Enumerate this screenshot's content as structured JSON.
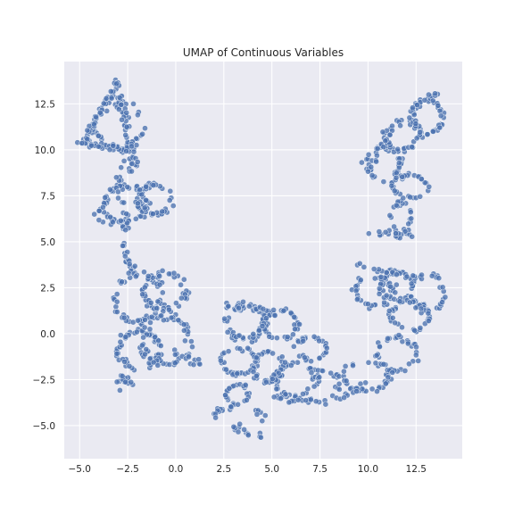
{
  "chart_data": {
    "type": "scatter",
    "title": "UMAP of Continuous Variables",
    "xlabel": "",
    "ylabel": "",
    "xlim": [
      -5.8,
      14.9
    ],
    "ylim": [
      -6.8,
      14.8
    ],
    "xticks": [
      -5.0,
      -2.5,
      0.0,
      2.5,
      5.0,
      7.5,
      10.0,
      12.5
    ],
    "xtick_labels": [
      "−5.0",
      "−2.5",
      "0.0",
      "2.5",
      "5.0",
      "7.5",
      "10.0",
      "12.5"
    ],
    "yticks": [
      -5.0,
      -2.5,
      0.0,
      2.5,
      5.0,
      7.5,
      10.0,
      12.5
    ],
    "ytick_labels": [
      "−5.0",
      "−2.5",
      "0.0",
      "2.5",
      "5.0",
      "7.5",
      "10.0",
      "12.5"
    ],
    "grid": true,
    "background": "#eaeaf2",
    "point_color": "#4c72b0",
    "point_edge_color": "#ffffff",
    "clusters": [
      {
        "kind": "ring",
        "cx": -2.9,
        "cy": 11.3,
        "rx": 1.3,
        "ry": 1.2,
        "n": 45
      },
      {
        "kind": "poly",
        "pts": [
          [
            -4.9,
            10.3
          ],
          [
            -3.0,
            13.7
          ],
          [
            -2.3,
            10.0
          ],
          [
            -4.9,
            10.3
          ]
        ],
        "n": 120
      },
      {
        "kind": "blob",
        "cx": -2.3,
        "cy": 9.3,
        "rx": 0.4,
        "ry": 0.8,
        "n": 20
      },
      {
        "kind": "ring",
        "cx": -2.6,
        "cy": 7.0,
        "rx": 1.1,
        "ry": 1.0,
        "n": 55
      },
      {
        "kind": "ring",
        "cx": -1.1,
        "cy": 7.3,
        "rx": 0.9,
        "ry": 0.8,
        "n": 45
      },
      {
        "kind": "poly",
        "pts": [
          [
            -4.3,
            6.2
          ],
          [
            -3.0,
            8.5
          ],
          [
            -2.6,
            5.8
          ],
          [
            -4.3,
            6.2
          ]
        ],
        "n": 40
      },
      {
        "kind": "line",
        "pts": [
          [
            -2.7,
            5.0
          ],
          [
            -2.7,
            4.2
          ],
          [
            -2.3,
            3.6
          ]
        ],
        "n": 14
      },
      {
        "kind": "ring",
        "cx": -2.0,
        "cy": 2.0,
        "rx": 1.2,
        "ry": 1.3,
        "n": 60
      },
      {
        "kind": "ring",
        "cx": -0.6,
        "cy": 2.3,
        "rx": 1.1,
        "ry": 1.0,
        "n": 55
      },
      {
        "kind": "ring",
        "cx": -1.9,
        "cy": -0.9,
        "rx": 1.1,
        "ry": 1.0,
        "n": 60
      },
      {
        "kind": "ring",
        "cx": -0.5,
        "cy": -0.4,
        "rx": 1.2,
        "ry": 1.3,
        "n": 60
      },
      {
        "kind": "blob",
        "cx": -2.6,
        "cy": -2.6,
        "rx": 0.4,
        "ry": 0.4,
        "n": 18
      },
      {
        "kind": "line",
        "pts": [
          [
            0.0,
            -1.0
          ],
          [
            1.0,
            -1.5
          ],
          [
            1.5,
            -1.6
          ]
        ],
        "n": 12
      },
      {
        "kind": "ring",
        "cx": 3.6,
        "cy": 0.6,
        "rx": 1.0,
        "ry": 0.9,
        "n": 50
      },
      {
        "kind": "ring",
        "cx": 5.4,
        "cy": 0.5,
        "rx": 0.9,
        "ry": 0.8,
        "n": 40
      },
      {
        "kind": "line",
        "pts": [
          [
            2.5,
            1.5
          ],
          [
            3.5,
            1.5
          ],
          [
            4.5,
            1.3
          ],
          [
            5.4,
            1.1
          ]
        ],
        "n": 25
      },
      {
        "kind": "ring",
        "cx": 3.3,
        "cy": -1.5,
        "rx": 0.9,
        "ry": 0.7,
        "n": 35
      },
      {
        "kind": "ring",
        "cx": 4.8,
        "cy": -1.8,
        "rx": 0.8,
        "ry": 0.8,
        "n": 35
      },
      {
        "kind": "ring",
        "cx": 6.2,
        "cy": -2.5,
        "rx": 1.1,
        "ry": 0.9,
        "n": 50
      },
      {
        "kind": "ring",
        "cx": 7.1,
        "cy": -0.8,
        "rx": 0.8,
        "ry": 0.6,
        "n": 30
      },
      {
        "kind": "line",
        "pts": [
          [
            5.0,
            -3.4
          ],
          [
            6.0,
            -3.7
          ],
          [
            7.0,
            -3.6
          ],
          [
            7.9,
            -3.8
          ]
        ],
        "n": 20
      },
      {
        "kind": "line",
        "pts": [
          [
            7.5,
            -2.0
          ],
          [
            8.3,
            -2.2
          ],
          [
            8.6,
            -2.6
          ],
          [
            8.2,
            -3.5
          ]
        ],
        "n": 16
      },
      {
        "kind": "ring",
        "cx": 3.2,
        "cy": -3.3,
        "rx": 0.6,
        "ry": 0.5,
        "n": 22
      },
      {
        "kind": "line",
        "pts": [
          [
            1.8,
            -4.4
          ],
          [
            2.5,
            -4.1
          ],
          [
            3.3,
            -3.9
          ],
          [
            4.2,
            -4.2
          ],
          [
            4.4,
            -4.6
          ]
        ],
        "n": 22
      },
      {
        "kind": "line",
        "pts": [
          [
            2.9,
            -5.1
          ],
          [
            3.6,
            -5.3
          ],
          [
            4.2,
            -5.5
          ],
          [
            4.8,
            -5.7
          ]
        ],
        "n": 14
      },
      {
        "kind": "ring",
        "cx": 9.9,
        "cy": -2.3,
        "rx": 1.2,
        "ry": 0.8,
        "n": 40
      },
      {
        "kind": "ring",
        "cx": 11.5,
        "cy": -1.1,
        "rx": 1.0,
        "ry": 0.9,
        "n": 40
      },
      {
        "kind": "line",
        "pts": [
          [
            8.6,
            -3.5
          ],
          [
            9.3,
            -3.1
          ],
          [
            10.0,
            -2.7
          ]
        ],
        "n": 12
      },
      {
        "kind": "ring",
        "cx": 10.3,
        "cy": 2.3,
        "rx": 1.0,
        "ry": 0.8,
        "n": 40
      },
      {
        "kind": "ring",
        "cx": 11.5,
        "cy": 2.6,
        "rx": 0.9,
        "ry": 0.8,
        "n": 35
      },
      {
        "kind": "ring",
        "cx": 12.2,
        "cy": 1.0,
        "rx": 1.0,
        "ry": 0.8,
        "n": 35
      },
      {
        "kind": "ring",
        "cx": 13.1,
        "cy": 2.2,
        "rx": 0.9,
        "ry": 1.0,
        "n": 40
      },
      {
        "kind": "line",
        "pts": [
          [
            9.4,
            3.8
          ],
          [
            10.4,
            3.4
          ],
          [
            11.4,
            3.3
          ],
          [
            12.2,
            3.1
          ]
        ],
        "n": 18
      },
      {
        "kind": "line",
        "pts": [
          [
            10.1,
            5.3
          ],
          [
            11.0,
            5.5
          ],
          [
            11.6,
            5.2
          ],
          [
            12.3,
            5.4
          ]
        ],
        "n": 16
      },
      {
        "kind": "ring",
        "cx": 11.7,
        "cy": 6.3,
        "rx": 0.5,
        "ry": 0.8,
        "n": 25
      },
      {
        "kind": "ring",
        "cx": 10.8,
        "cy": 9.3,
        "rx": 0.9,
        "ry": 0.9,
        "n": 40
      },
      {
        "kind": "ring",
        "cx": 12.2,
        "cy": 8.0,
        "rx": 0.9,
        "ry": 0.6,
        "n": 35
      },
      {
        "kind": "ring",
        "cx": 11.8,
        "cy": 10.8,
        "rx": 0.9,
        "ry": 0.8,
        "n": 40
      },
      {
        "kind": "ring",
        "cx": 13.1,
        "cy": 11.8,
        "rx": 0.8,
        "ry": 0.9,
        "n": 45
      },
      {
        "kind": "line",
        "pts": [
          [
            10.0,
            8.8
          ],
          [
            10.6,
            10.2
          ],
          [
            11.4,
            11.2
          ],
          [
            12.4,
            12.4
          ],
          [
            13.6,
            13.0
          ]
        ],
        "n": 30
      }
    ]
  }
}
